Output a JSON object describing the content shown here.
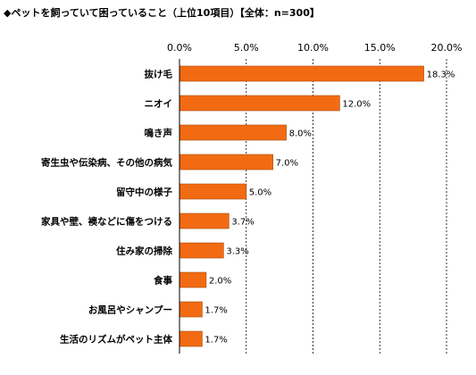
{
  "chart_data": {
    "type": "bar",
    "orientation": "horizontal",
    "title": "◆ペットを飼っていて困っていること（上位10項目）【全体：n=300】",
    "categories": [
      "抜け毛",
      "ニオイ",
      "鳴き声",
      "寄生虫や伝染病、その他の病気",
      "留守中の様子",
      "家具や壁、襖などに傷をつける",
      "住み家の掃除",
      "食事",
      "お風呂やシャンプー",
      "生活のリズムがペット主体"
    ],
    "values": [
      18.3,
      12.0,
      8.0,
      7.0,
      5.0,
      3.7,
      3.3,
      2.0,
      1.7,
      1.7
    ],
    "value_labels": [
      "18.3%",
      "12.0%",
      "8.0%",
      "7.0%",
      "5.0%",
      "3.7%",
      "3.3%",
      "2.0%",
      "1.7%",
      "1.7%"
    ],
    "x_ticks": [
      0,
      5,
      10,
      15,
      20
    ],
    "x_tick_labels": [
      "0.0%",
      "5.0%",
      "10.0%",
      "15.0%",
      "20.0%"
    ],
    "xlim": [
      0,
      20
    ],
    "grid": true,
    "legend": "none",
    "bar_color": "#F26B12",
    "bar_stroke": "#A64A10"
  }
}
